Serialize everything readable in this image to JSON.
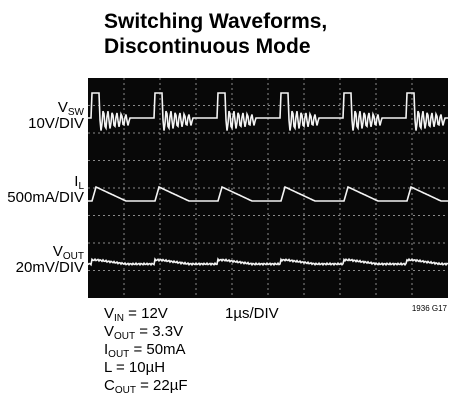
{
  "title": [
    "Switching Waveforms,",
    "Discontinuous Mode"
  ],
  "traces": [
    {
      "symbol": "V",
      "sub": "SW",
      "scale": "10V/DIV"
    },
    {
      "symbol": "I",
      "sub": "L",
      "scale": "500mA/DIV"
    },
    {
      "symbol": "V",
      "sub": "OUT",
      "scale": "20mV/DIV"
    }
  ],
  "timebase": "1µs/DIV",
  "figure_id": "1936 G17",
  "conditions": [
    {
      "symbol": "V",
      "sub": "IN",
      "rest": " = 12V"
    },
    {
      "symbol": "V",
      "sub": "OUT",
      "rest": " = 3.3V"
    },
    {
      "symbol": "I",
      "sub": "OUT",
      "rest": " = 50mA"
    },
    {
      "symbol": "L",
      "rest": " = 10µH"
    },
    {
      "symbol": "C",
      "sub": "OUT",
      "rest": " = 22µF"
    }
  ]
}
